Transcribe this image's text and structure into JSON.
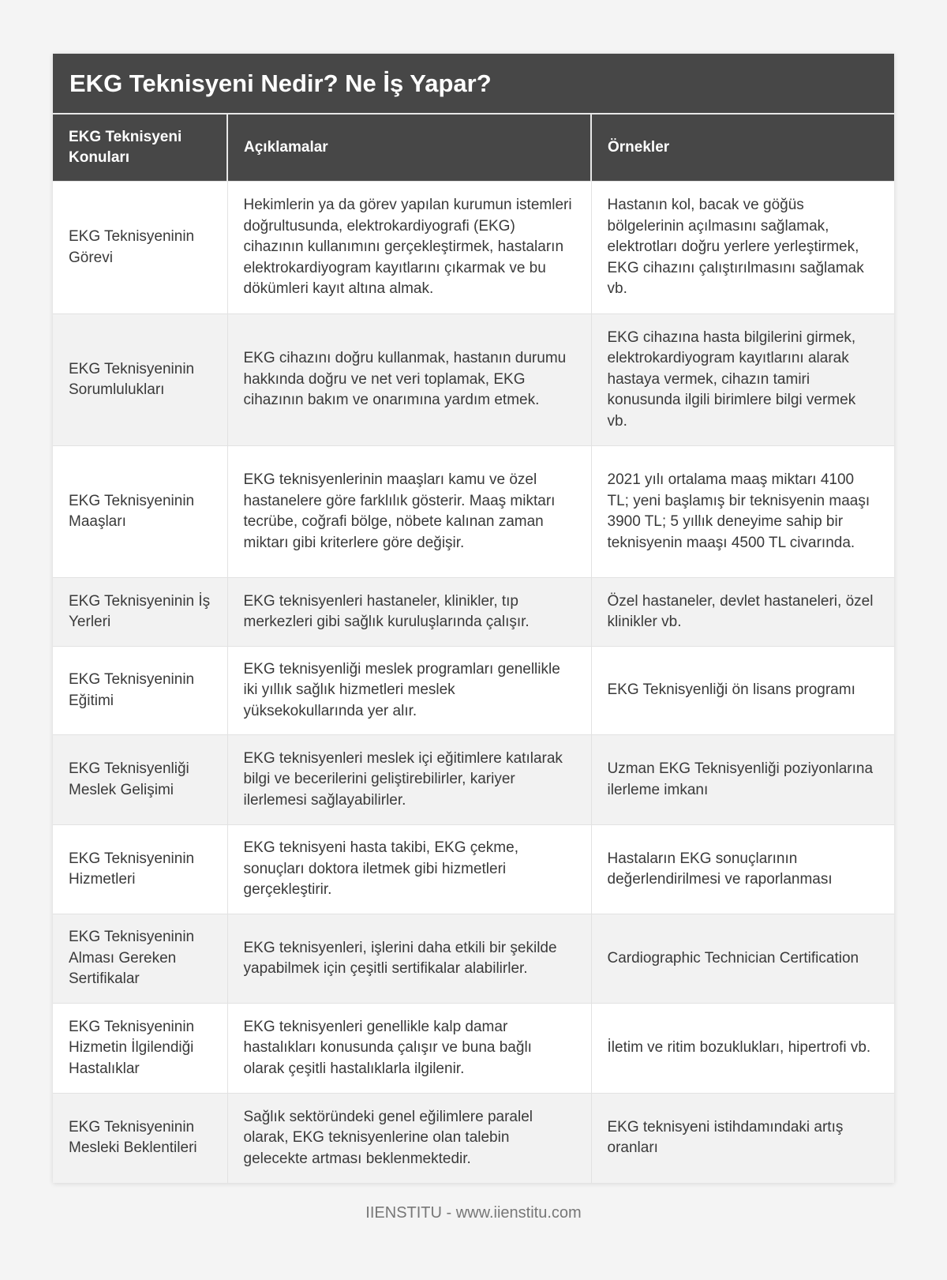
{
  "title": "EKG Teknisyeni Nedir? Ne İş Yapar?",
  "columns": [
    "EKG Teknisyeni Konuları",
    "Açıklamalar",
    "Örnekler"
  ],
  "rows": [
    [
      "EKG Teknisyeninin Görevi",
      "Hekimlerin ya da görev yapılan kurumun istemleri doğrultusunda, elektrokardiyografi (EKG) cihazının kullanımını gerçekleştirmek, hastaların elektrokardiyogram kayıtlarını çıkarmak ve bu dökümleri kayıt altına almak.",
      "Hastanın kol, bacak ve göğüs bölgelerinin açılmasını sağlamak, elektrotları doğru yerlere yerleştirmek, EKG cihazını çalıştırılmasını sağlamak vb."
    ],
    [
      "EKG Teknisyeninin Sorumlulukları",
      "EKG cihazını doğru kullanmak, hastanın durumu hakkında doğru ve net veri toplamak, EKG cihazının bakım ve onarımına yardım etmek.",
      "EKG cihazına hasta bilgilerini girmek, elektrokardiyogram kayıtlarını alarak hastaya vermek, cihazın tamiri konusunda ilgili birimlere bilgi vermek vb."
    ],
    [
      "EKG Teknisyeninin Maaşları",
      "EKG teknisyenlerinin maaşları kamu ve özel hastanelere göre farklılık gösterir. Maaş miktarı tecrübe, coğrafi bölge, nöbete kalınan zaman miktarı gibi kriterlere göre değişir.",
      "2021 yılı ortalama maaş miktarı 4100 TL; yeni başlamış bir teknisyenin maaşı 3900 TL; 5 yıllık deneyime sahip bir teknisyenin maaşı 4500 TL civarında."
    ],
    [
      "EKG Teknisyeninin İş Yerleri",
      "EKG teknisyenleri hastaneler, klinikler, tıp merkezleri gibi sağlık kuruluşlarında çalışır.",
      "Özel hastaneler, devlet hastaneleri, özel klinikler vb."
    ],
    [
      "EKG Teknisyeninin Eğitimi",
      "EKG teknisyenliği meslek programları genellikle iki yıllık sağlık hizmetleri meslek yüksekokullarında yer alır.",
      "EKG Teknisyenliği ön lisans programı"
    ],
    [
      "EKG Teknisyenliği Meslek Gelişimi",
      "EKG teknisyenleri meslek içi eğitimlere katılarak bilgi ve becerilerini geliştirebilirler, kariyer ilerlemesi sağlayabilirler.",
      "Uzman EKG Teknisyenliği poziyonlarına ilerleme imkanı"
    ],
    [
      "EKG Teknisyeninin Hizmetleri",
      "EKG teknisyeni hasta takibi, EKG çekme, sonuçları doktora iletmek gibi hizmetleri gerçekleştirir.",
      "Hastaların EKG sonuçlarının değerlendirilmesi ve raporlanması"
    ],
    [
      "EKG Teknisyeninin Alması Gereken Sertifikalar",
      "EKG teknisyenleri, işlerini daha etkili bir şekilde yapabilmek için çeşitli sertifikalar alabilirler.",
      "Cardiographic Technician Certification"
    ],
    [
      "EKG Teknisyeninin Hizmetin İlgilendiği Hastalıklar",
      "EKG teknisyenleri genellikle kalp damar hastalıkları konusunda çalışır ve buna bağlı olarak çeşitli hastalıklarla ilgilenir.",
      "İletim ve ritim bozuklukları, hipertrofi vb."
    ],
    [
      "EKG Teknisyeninin Mesleki Beklentileri",
      "Sağlık sektöründeki genel eğilimlere paralel olarak, EKG teknisyenlerine olan talebin gelecekte artması beklenmektedir.",
      "EKG teknisyeni istihdamındaki artış oranları"
    ]
  ],
  "footer": "IIENSTITU - www.iienstitu.com"
}
